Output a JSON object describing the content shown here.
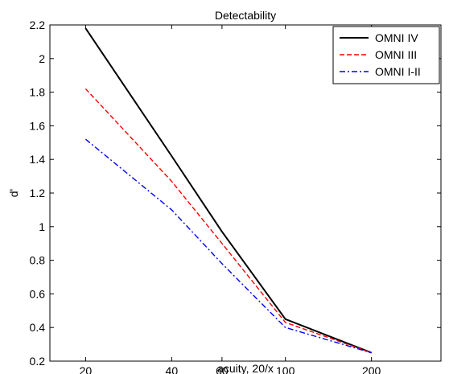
{
  "chart_data": {
    "type": "line",
    "title": "Detectability",
    "xlabel": "acuity, 20/x",
    "ylabel": "d'",
    "x_scale": "log",
    "xlim": [
      15,
      350
    ],
    "ylim": [
      0.2,
      2.2
    ],
    "x": [
      20,
      40,
      60,
      100,
      200
    ],
    "xticks": [
      20,
      40,
      60,
      100,
      200
    ],
    "yticks": [
      0.2,
      0.4,
      0.6,
      0.8,
      1,
      1.2,
      1.4,
      1.6,
      1.8,
      2,
      2.2
    ],
    "grid": false,
    "legend_position": "top-right",
    "series": [
      {
        "name": "OMNI IV",
        "values": [
          2.18,
          1.42,
          0.97,
          0.45,
          0.25
        ],
        "color": "#000000",
        "style": "solid"
      },
      {
        "name": "OMNI III",
        "values": [
          1.82,
          1.27,
          0.9,
          0.43,
          0.25
        ],
        "color": "#ff0000",
        "style": "dashed"
      },
      {
        "name": "OMNI I-II",
        "values": [
          1.52,
          1.1,
          0.78,
          0.4,
          0.25
        ],
        "color": "#0000ff",
        "style": "dashdot"
      }
    ]
  }
}
